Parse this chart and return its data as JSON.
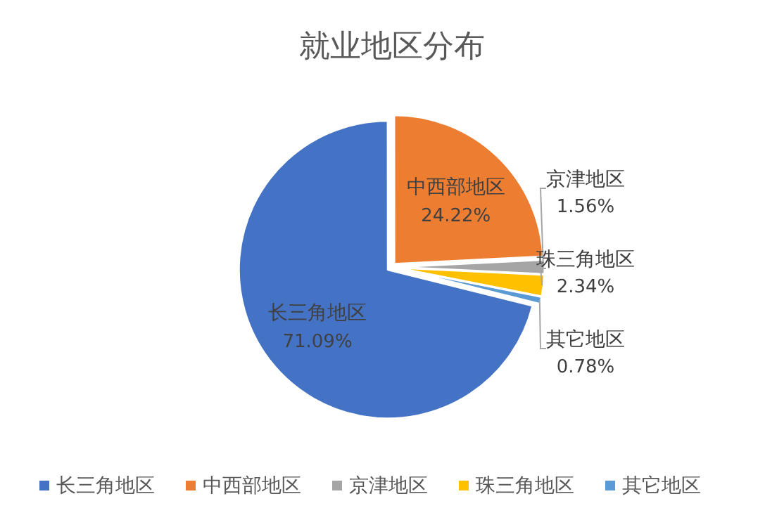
{
  "chart_data": {
    "type": "pie",
    "title": "就业地区分布",
    "categories": [
      "长三角地区",
      "中西部地区",
      "京津地区",
      "珠三角地区",
      "其它地区"
    ],
    "values": [
      71.09,
      24.22,
      1.56,
      2.34,
      0.78
    ],
    "colors": [
      "#4472c4",
      "#ed7d31",
      "#a5a5a5",
      "#ffc000",
      "#5b9bd5"
    ],
    "value_labels": [
      "71.09%",
      "24.22%",
      "1.56%",
      "2.34%",
      "0.78%"
    ],
    "legend": "bottom"
  }
}
